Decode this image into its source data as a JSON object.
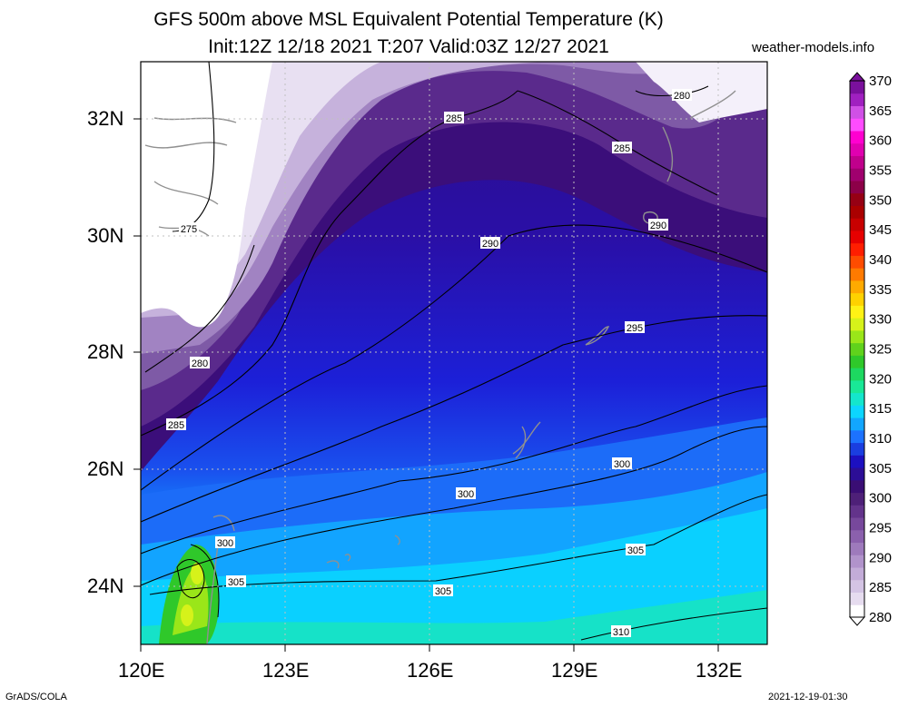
{
  "title": {
    "line1": "GFS 500m above MSL Equivalent Potential Temperature (K)",
    "line2": "Init:12Z 12/18 2021 T:207 Valid:03Z 12/27 2021"
  },
  "site": "weather-models.info",
  "axes": {
    "lon_labels": [
      "120E",
      "123E",
      "126E",
      "129E",
      "132E"
    ],
    "lat_labels": [
      "32N",
      "30N",
      "28N",
      "26N",
      "24N"
    ],
    "lon_range": [
      120,
      133
    ],
    "lat_range": [
      23,
      33
    ],
    "grid": true
  },
  "colorbar": {
    "unit": "K",
    "labels": [
      "370",
      "365",
      "360",
      "355",
      "350",
      "345",
      "340",
      "335",
      "330",
      "325",
      "320",
      "315",
      "310",
      "305",
      "300",
      "295",
      "290",
      "285",
      "280"
    ],
    "colors": [
      "#ffffff",
      "#e6dcef",
      "#d4c4e4",
      "#c3acd8",
      "#b193cb",
      "#9e7abc",
      "#8b60ad",
      "#77489c",
      "#63338b",
      "#4e2078",
      "#3a0e74",
      "#2c0e96",
      "#1c10c0",
      "#1a3ee0",
      "#1c72ff",
      "#12a6ff",
      "#0cd6ff",
      "#14e6cc",
      "#19e897",
      "#1dd860",
      "#2fc82a",
      "#60d21c",
      "#9ae619",
      "#d6f21a",
      "#fff215",
      "#ffd200",
      "#ffaa00",
      "#ff7a00",
      "#ff4c00",
      "#ff1e00",
      "#e60000",
      "#c80000",
      "#aa0000",
      "#960014",
      "#8c0048",
      "#a0006e",
      "#c0008c",
      "#e000b0",
      "#ff00d0",
      "#ff4cff",
      "#d050e6",
      "#a020c0",
      "#7a109c"
    ]
  },
  "contours": [
    {
      "label": "275"
    },
    {
      "label": "280"
    },
    {
      "label": "280"
    },
    {
      "label": "285"
    },
    {
      "label": "285"
    },
    {
      "label": "285"
    },
    {
      "label": "290"
    },
    {
      "label": "290"
    },
    {
      "label": "295"
    },
    {
      "label": "300"
    },
    {
      "label": "300"
    },
    {
      "label": "300"
    },
    {
      "label": "305"
    },
    {
      "label": "305"
    },
    {
      "label": "305"
    },
    {
      "label": "310"
    }
  ],
  "footer": {
    "left": "GrADS/COLA",
    "right": "2021-12-19-01:30"
  }
}
